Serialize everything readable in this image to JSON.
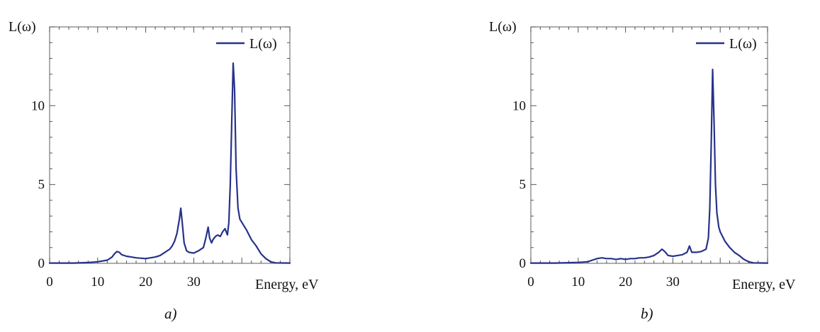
{
  "colors": {
    "series": "#27328a",
    "frame": "#777777"
  },
  "chart_data": [
    {
      "id": "a",
      "type": "line",
      "panel_label": "a)",
      "ylabel": "L(ω)",
      "xlabel": "Energy, eV",
      "xlim": [
        0,
        50
      ],
      "ylim": [
        0,
        15
      ],
      "xticks": [
        0,
        10,
        20,
        30
      ],
      "yticks": [
        0,
        5,
        10
      ],
      "grid": false,
      "legend": {
        "position": "top-right",
        "entries": [
          "L(ω)"
        ]
      },
      "series": [
        {
          "name": "L(ω)",
          "points": [
            [
              0,
              0.02
            ],
            [
              5,
              0.02
            ],
            [
              8,
              0.05
            ],
            [
              10,
              0.1
            ],
            [
              12,
              0.2
            ],
            [
              13,
              0.4
            ],
            [
              13.5,
              0.6
            ],
            [
              14,
              0.75
            ],
            [
              14.5,
              0.7
            ],
            [
              15,
              0.55
            ],
            [
              16,
              0.45
            ],
            [
              17,
              0.4
            ],
            [
              18,
              0.35
            ],
            [
              20,
              0.3
            ],
            [
              21,
              0.35
            ],
            [
              22,
              0.4
            ],
            [
              23,
              0.5
            ],
            [
              24,
              0.7
            ],
            [
              25,
              0.9
            ],
            [
              25.5,
              1.1
            ],
            [
              26,
              1.4
            ],
            [
              26.5,
              1.9
            ],
            [
              27,
              2.8
            ],
            [
              27.3,
              3.5
            ],
            [
              27.6,
              2.6
            ],
            [
              28,
              1.3
            ],
            [
              28.5,
              0.8
            ],
            [
              29,
              0.7
            ],
            [
              30,
              0.65
            ],
            [
              31,
              0.8
            ],
            [
              32,
              1.0
            ],
            [
              32.5,
              1.6
            ],
            [
              33,
              2.3
            ],
            [
              33.3,
              1.6
            ],
            [
              33.7,
              1.3
            ],
            [
              34,
              1.5
            ],
            [
              34.5,
              1.7
            ],
            [
              35,
              1.8
            ],
            [
              35.5,
              1.7
            ],
            [
              36,
              2.0
            ],
            [
              36.5,
              2.2
            ],
            [
              37,
              1.8
            ],
            [
              37.3,
              2.6
            ],
            [
              37.6,
              5.0
            ],
            [
              37.9,
              9.0
            ],
            [
              38.2,
              12.7
            ],
            [
              38.5,
              11.0
            ],
            [
              38.8,
              6.0
            ],
            [
              39.2,
              3.5
            ],
            [
              39.6,
              2.8
            ],
            [
              40,
              2.6
            ],
            [
              41,
              2.1
            ],
            [
              42,
              1.5
            ],
            [
              43,
              1.1
            ],
            [
              44,
              0.6
            ],
            [
              45,
              0.3
            ],
            [
              46,
              0.1
            ],
            [
              47,
              0.03
            ],
            [
              50,
              0.02
            ]
          ]
        }
      ]
    },
    {
      "id": "b",
      "type": "line",
      "panel_label": "b)",
      "ylabel": "L(ω)",
      "xlabel": "Energy, eV",
      "xlim": [
        0,
        50
      ],
      "ylim": [
        0,
        15
      ],
      "xticks": [
        0,
        10,
        20,
        30
      ],
      "yticks": [
        0,
        5,
        10
      ],
      "grid": false,
      "legend": {
        "position": "top-right",
        "entries": [
          "L(ω)"
        ]
      },
      "series": [
        {
          "name": "L(ω)",
          "points": [
            [
              0,
              0.02
            ],
            [
              5,
              0.02
            ],
            [
              8,
              0.04
            ],
            [
              10,
              0.06
            ],
            [
              12,
              0.1
            ],
            [
              13,
              0.2
            ],
            [
              14,
              0.3
            ],
            [
              15,
              0.35
            ],
            [
              16,
              0.3
            ],
            [
              17,
              0.3
            ],
            [
              18,
              0.25
            ],
            [
              19,
              0.3
            ],
            [
              20,
              0.25
            ],
            [
              21,
              0.3
            ],
            [
              22,
              0.3
            ],
            [
              23,
              0.35
            ],
            [
              24,
              0.35
            ],
            [
              25,
              0.4
            ],
            [
              26,
              0.5
            ],
            [
              27,
              0.7
            ],
            [
              27.7,
              0.9
            ],
            [
              28.3,
              0.75
            ],
            [
              29,
              0.5
            ],
            [
              30,
              0.45
            ],
            [
              31,
              0.5
            ],
            [
              32,
              0.55
            ],
            [
              33,
              0.7
            ],
            [
              33.5,
              1.1
            ],
            [
              34,
              0.7
            ],
            [
              35,
              0.7
            ],
            [
              36,
              0.75
            ],
            [
              37,
              0.9
            ],
            [
              37.5,
              1.6
            ],
            [
              37.8,
              3.5
            ],
            [
              38.1,
              7.5
            ],
            [
              38.4,
              12.3
            ],
            [
              38.7,
              9.0
            ],
            [
              39,
              5.0
            ],
            [
              39.3,
              3.2
            ],
            [
              39.7,
              2.3
            ],
            [
              40,
              2.0
            ],
            [
              41,
              1.4
            ],
            [
              42,
              1.0
            ],
            [
              43,
              0.7
            ],
            [
              44,
              0.5
            ],
            [
              45,
              0.25
            ],
            [
              46,
              0.1
            ],
            [
              47,
              0.03
            ],
            [
              50,
              0.02
            ]
          ]
        }
      ]
    }
  ]
}
